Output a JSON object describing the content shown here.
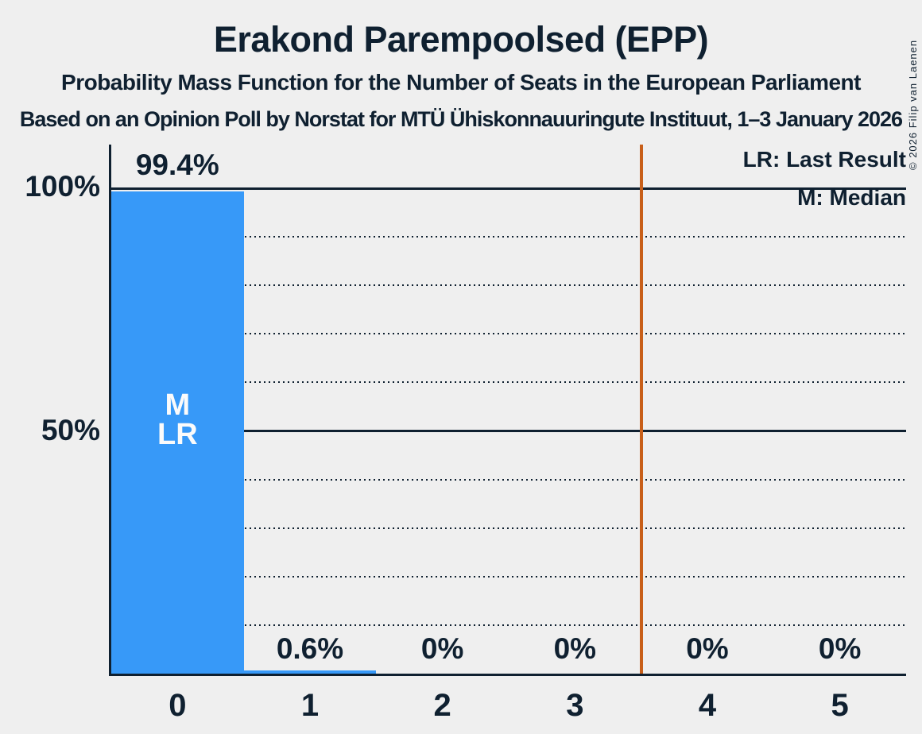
{
  "header": {
    "title": "Erakond Parempoolsed (EPP)",
    "subtitle": "Probability Mass Function for the Number of Seats in the European Parliament",
    "source": "Based on an Opinion Poll by Norstat for MTÜ Ühiskonnauuringute Instituut, 1–3 January 2026"
  },
  "copyright": "© 2026 Filip van Laenen",
  "legend": {
    "last_result": "LR: Last Result",
    "median": "M: Median"
  },
  "y_axis": {
    "ticks": [
      "100%",
      "50%"
    ]
  },
  "chart_data": {
    "type": "bar",
    "title": "Erakond Parempoolsed (EPP)",
    "categories": [
      "0",
      "1",
      "2",
      "3",
      "4",
      "5"
    ],
    "values": [
      99.4,
      0.6,
      0,
      0,
      0,
      0
    ],
    "value_labels": [
      "99.4%",
      "0.6%",
      "0%",
      "0%",
      "0%",
      "0%"
    ],
    "ylim": [
      0,
      109
    ],
    "y_tick_labels": [
      "100%",
      "50%"
    ],
    "gridlines_pct": [
      10,
      20,
      30,
      40,
      50,
      60,
      70,
      80,
      90,
      100
    ],
    "solid_gridlines_pct": [
      50,
      100
    ],
    "grid_style": "dotted",
    "legend_position": "top-right",
    "bar_markers": {
      "bar_index": 0,
      "labels": [
        "M",
        "LR"
      ]
    },
    "median_seats": 0,
    "last_result_seats": 0,
    "vertical_line": {
      "x": 3.5,
      "color": "#C85F19"
    },
    "colors": {
      "bar": "#3799F8",
      "background": "#EFEFEF",
      "text": "#0F2030",
      "marker_text": "#FBFBFB",
      "vertical_line": "#C85F19"
    }
  }
}
